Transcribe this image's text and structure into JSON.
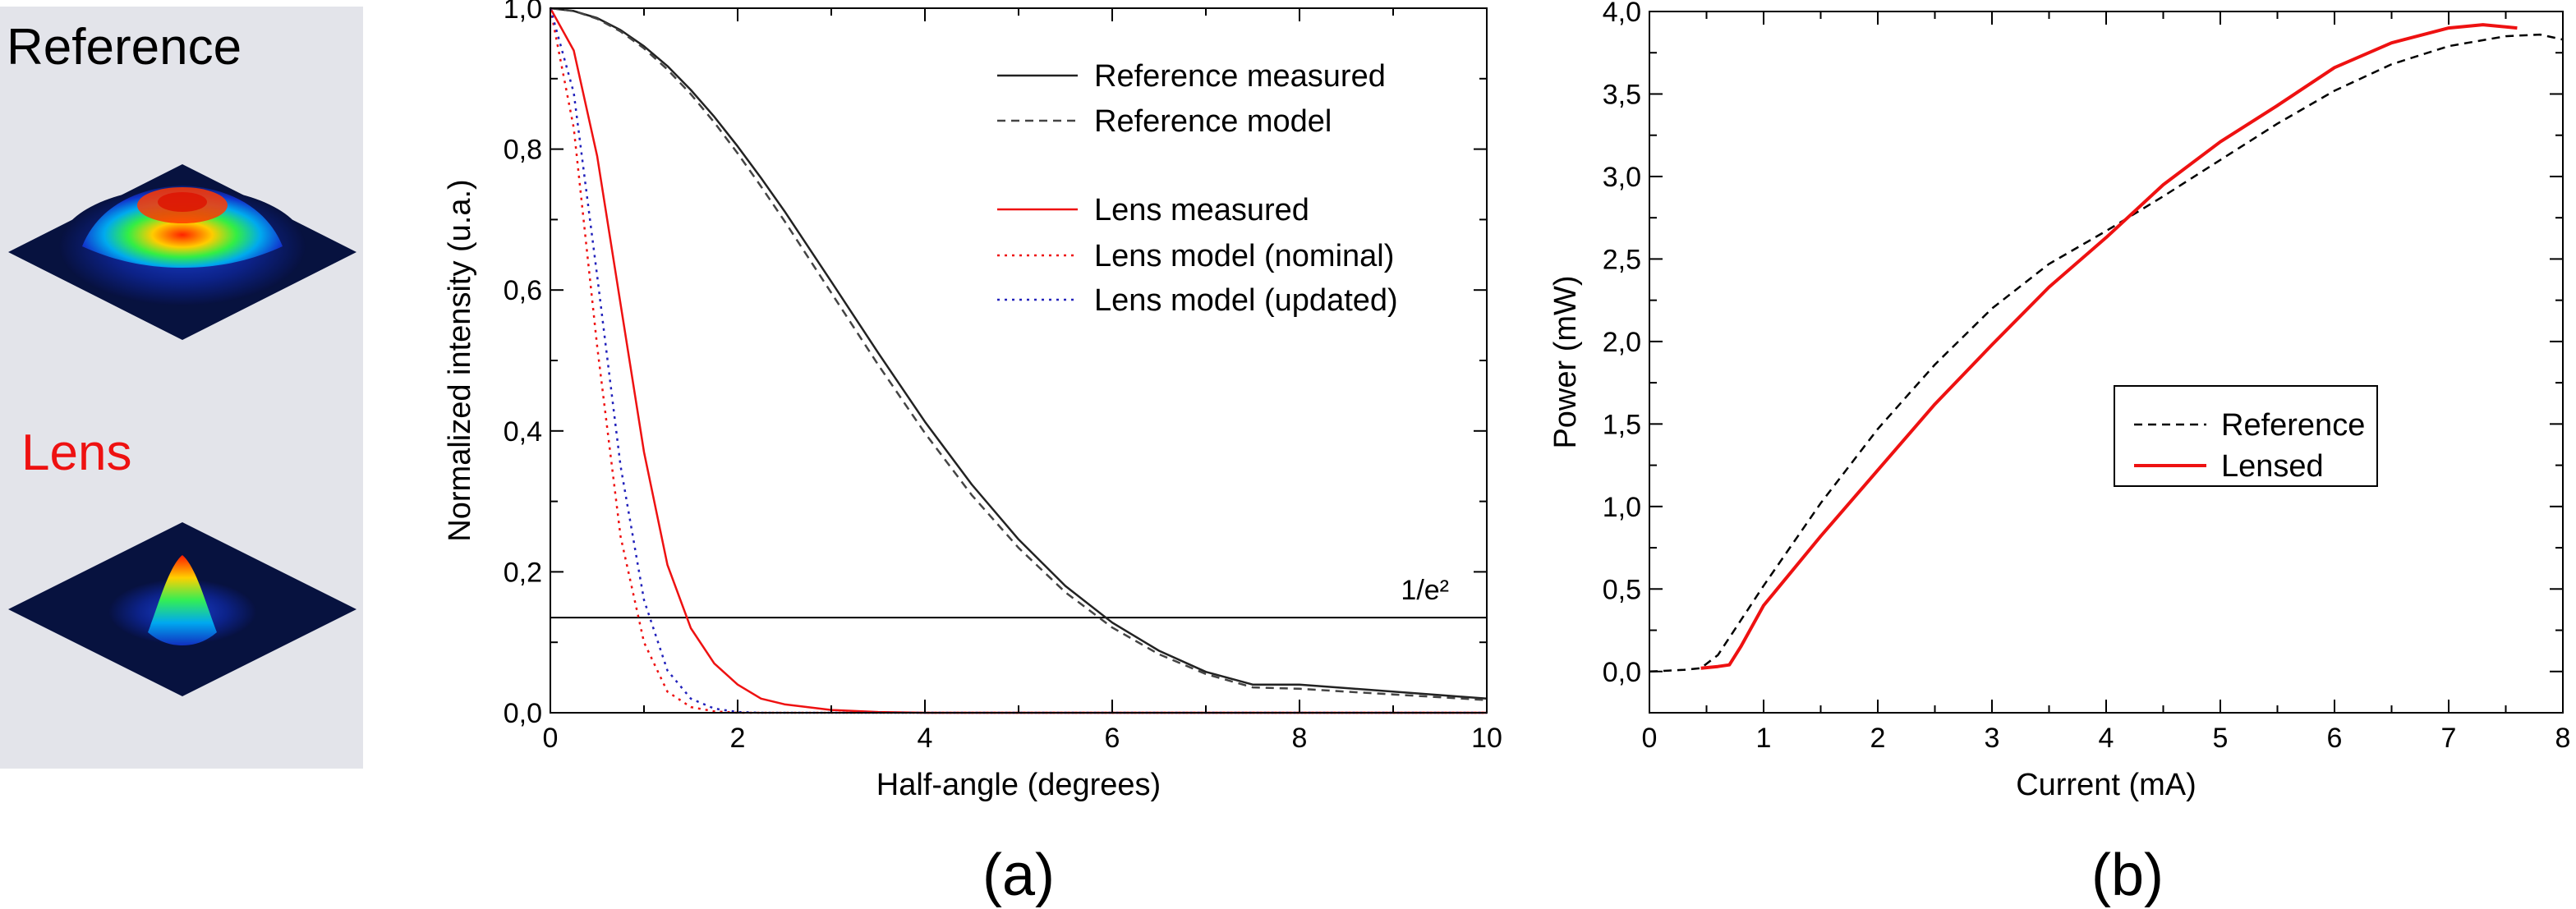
{
  "left_panel": {
    "reference_title": "Reference",
    "lens_title": "Lens",
    "reference_color": "#1a1a1a",
    "lens_color": "#ee1111"
  },
  "chart_data": [
    {
      "type": "line",
      "panel_label": "(a)",
      "title": "",
      "xlabel": "Half-angle (degrees)",
      "ylabel": "Normalized intensity (u.a.)",
      "xlim": [
        0,
        10
      ],
      "ylim": [
        0,
        1
      ],
      "x_ticks": [
        "0",
        "2",
        "4",
        "6",
        "8",
        "10"
      ],
      "y_ticks": [
        "0,0",
        "0,2",
        "0,4",
        "0,6",
        "0,8",
        "1,0"
      ],
      "x": [
        0,
        0.25,
        0.5,
        0.75,
        1,
        1.25,
        1.5,
        1.75,
        2,
        2.25,
        2.5,
        3,
        3.5,
        4,
        4.5,
        5,
        5.5,
        6,
        6.5,
        7,
        7.5,
        8,
        8.5,
        9,
        9.5,
        10
      ],
      "series": [
        {
          "name": "Reference measured",
          "color": "#222222",
          "style": "solid",
          "values": [
            1.0,
            0.996,
            0.986,
            0.969,
            0.946,
            0.918,
            0.884,
            0.846,
            0.804,
            0.759,
            0.712,
            0.612,
            0.511,
            0.413,
            0.324,
            0.246,
            0.18,
            0.128,
            0.088,
            0.058,
            0.04,
            0.04,
            0.035,
            0.03,
            0.025,
            0.02
          ]
        },
        {
          "name": "Reference model",
          "color": "#444444",
          "style": "dashed",
          "values": [
            1.0,
            0.996,
            0.985,
            0.967,
            0.943,
            0.913,
            0.878,
            0.838,
            0.794,
            0.747,
            0.698,
            0.596,
            0.494,
            0.397,
            0.309,
            0.234,
            0.171,
            0.121,
            0.083,
            0.055,
            0.036,
            0.034,
            0.03,
            0.026,
            0.022,
            0.018
          ]
        },
        {
          "name": "Lens measured",
          "color": "#ee1111",
          "style": "solid",
          "values": [
            1.0,
            0.94,
            0.79,
            0.58,
            0.37,
            0.21,
            0.12,
            0.07,
            0.04,
            0.02,
            0.012,
            0.004,
            0.001,
            0.0,
            0.0,
            0.0,
            0.0,
            0.0,
            0.0,
            0.0,
            0.0,
            0.0,
            0.0,
            0.0,
            0.0,
            0.0
          ]
        },
        {
          "name": "Lens model (nominal)",
          "color": "#ee1111",
          "style": "dotted",
          "values": [
            1.0,
            0.83,
            0.52,
            0.25,
            0.1,
            0.03,
            0.008,
            0.002,
            0.0,
            0.0,
            0.0,
            0.0,
            0.0,
            0.0,
            0.0,
            0.0,
            0.0,
            0.0,
            0.0,
            0.0,
            0.0,
            0.0,
            0.0,
            0.0,
            0.0,
            0.0
          ]
        },
        {
          "name": "Lens model (updated)",
          "color": "#2222bb",
          "style": "dotted",
          "values": [
            1.0,
            0.88,
            0.62,
            0.35,
            0.16,
            0.06,
            0.02,
            0.006,
            0.001,
            0.0,
            0.0,
            0.0,
            0.0,
            0.0,
            0.0,
            0.0,
            0.0,
            0.0,
            0.0,
            0.0,
            0.0,
            0.0,
            0.0,
            0.0,
            0.0,
            0.0
          ]
        }
      ],
      "hline": {
        "y": 0.135,
        "label": "1/e²"
      },
      "legend_position": "top-right",
      "grid": false
    },
    {
      "type": "line",
      "panel_label": "(b)",
      "title": "",
      "xlabel": "Current (mA)",
      "ylabel": "Power (mW)",
      "xlim": [
        0,
        8
      ],
      "ylim": [
        -0.25,
        4.0
      ],
      "x_ticks": [
        "0",
        "1",
        "2",
        "3",
        "4",
        "5",
        "6",
        "7",
        "8"
      ],
      "y_ticks": [
        "0,0",
        "0,5",
        "1,0",
        "1,5",
        "2,0",
        "2,5",
        "3,0",
        "3,5",
        "4,0"
      ],
      "series": [
        {
          "name": "Reference",
          "color": "#000000",
          "style": "dashed",
          "x": [
            0,
            0.3,
            0.45,
            0.6,
            1,
            1.5,
            2,
            2.5,
            3,
            3.5,
            4,
            4.5,
            5,
            5.5,
            6,
            6.5,
            7,
            7.5,
            7.8,
            8
          ],
          "values": [
            0.0,
            0.01,
            0.02,
            0.1,
            0.52,
            1.02,
            1.47,
            1.86,
            2.2,
            2.47,
            2.67,
            2.88,
            3.1,
            3.32,
            3.52,
            3.68,
            3.79,
            3.85,
            3.86,
            3.83
          ]
        },
        {
          "name": "Lensed",
          "color": "#ee1111",
          "style": "solid",
          "x": [
            0.45,
            0.6,
            0.7,
            0.8,
            1,
            1.5,
            2,
            2.5,
            3,
            3.5,
            4,
            4.5,
            5,
            5.5,
            6,
            6.5,
            7,
            7.3,
            7.6
          ],
          "values": [
            0.02,
            0.03,
            0.04,
            0.15,
            0.4,
            0.82,
            1.22,
            1.62,
            1.98,
            2.33,
            2.63,
            2.95,
            3.21,
            3.43,
            3.66,
            3.81,
            3.9,
            3.92,
            3.9
          ]
        }
      ],
      "legend_position": "center-right",
      "grid": false
    }
  ]
}
